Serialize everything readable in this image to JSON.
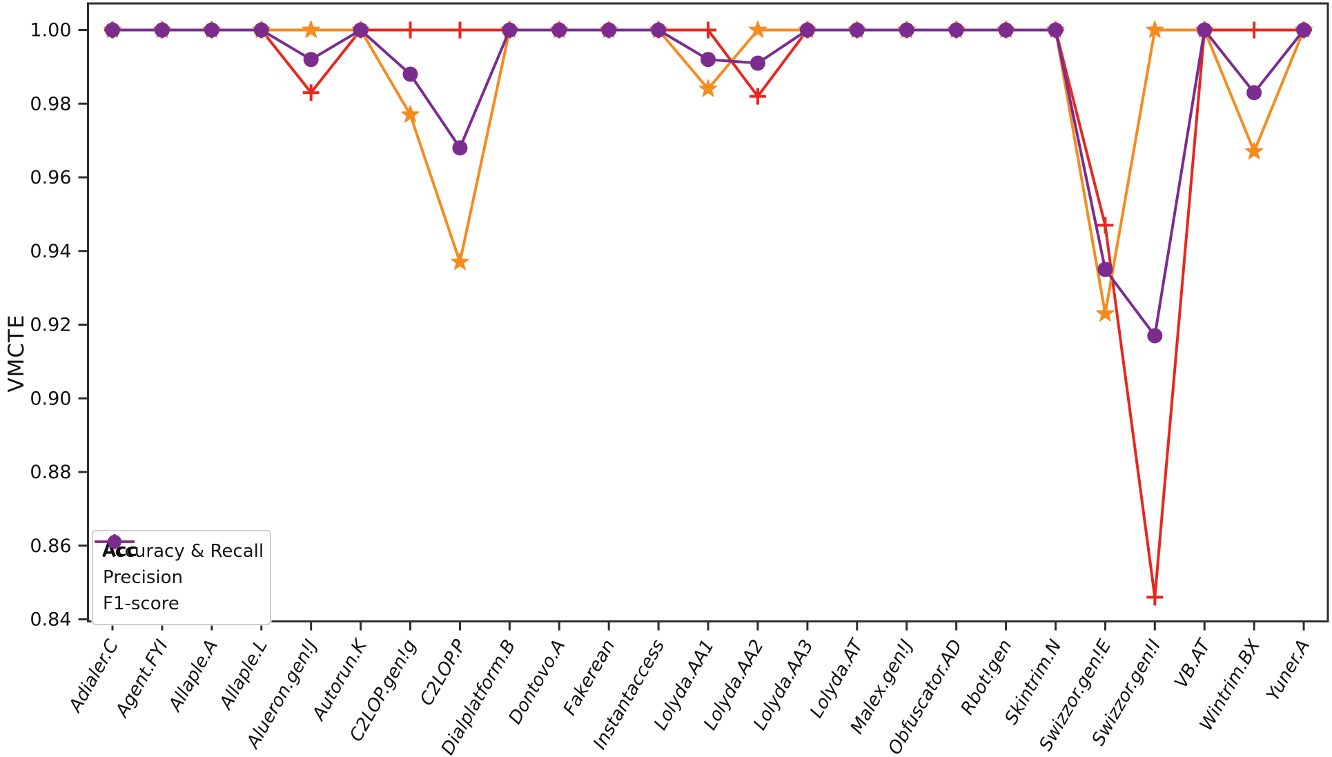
{
  "figure": {
    "background": "#ffffff",
    "axis_color": "#2e2e2e",
    "text_color": "#111111"
  },
  "legend_overlay": {
    "text": "Acc"
  },
  "chart_data": {
    "type": "line",
    "title": "",
    "xlabel": "",
    "ylabel": "VMCTE",
    "ylim": [
      0.84,
      1.0
    ],
    "y_tick_step": 0.02,
    "y_tick_labels": [
      "1.00",
      "0.98",
      "0.96",
      "0.94",
      "0.92",
      "0.90",
      "0.88",
      "0.86",
      "0.84"
    ],
    "grid": false,
    "legend_position": "lower left",
    "categories": [
      "Adialer.C",
      "Agent.FYI",
      "Allaple.A",
      "Allaple.L",
      "Alueron.gen!J",
      "Autorun.K",
      "C2LOP.gen!g",
      "C2LOP.P",
      "Dialplatform.B",
      "Dontovo.A",
      "Fakerean",
      "Instantaccess",
      "Lolyda.AA1",
      "Lolyda.AA2",
      "Lolyda.AA3",
      "Lolyda.AT",
      "Malex.gen!J",
      "Obfuscator.AD",
      "Rbot!gen",
      "Skintrim.N",
      "Swizzor.gen!E",
      "Swizzor.gen!I",
      "VB.AT",
      "Wintrim.BX",
      "Yuner.A"
    ],
    "series": [
      {
        "name": "Accuracy & Recall",
        "marker": "plus",
        "color": "#e8271d",
        "values": [
          1.0,
          1.0,
          1.0,
          1.0,
          0.983,
          1.0,
          1.0,
          1.0,
          1.0,
          1.0,
          1.0,
          1.0,
          1.0,
          0.982,
          1.0,
          1.0,
          1.0,
          1.0,
          1.0,
          1.0,
          0.947,
          0.846,
          1.0,
          1.0,
          1.0
        ]
      },
      {
        "name": "Precision",
        "marker": "star",
        "color": "#f68b1e",
        "values": [
          1.0,
          1.0,
          1.0,
          1.0,
          1.0,
          1.0,
          0.977,
          0.937,
          1.0,
          1.0,
          1.0,
          1.0,
          0.984,
          1.0,
          1.0,
          1.0,
          1.0,
          1.0,
          1.0,
          1.0,
          0.923,
          1.0,
          1.0,
          0.967,
          1.0
        ]
      },
      {
        "name": "F1-score",
        "marker": "circle",
        "color": "#7b2c8e",
        "values": [
          1.0,
          1.0,
          1.0,
          1.0,
          0.992,
          1.0,
          0.988,
          0.968,
          1.0,
          1.0,
          1.0,
          1.0,
          0.992,
          0.991,
          1.0,
          1.0,
          1.0,
          1.0,
          1.0,
          1.0,
          0.935,
          0.917,
          1.0,
          0.983,
          1.0
        ]
      }
    ]
  }
}
